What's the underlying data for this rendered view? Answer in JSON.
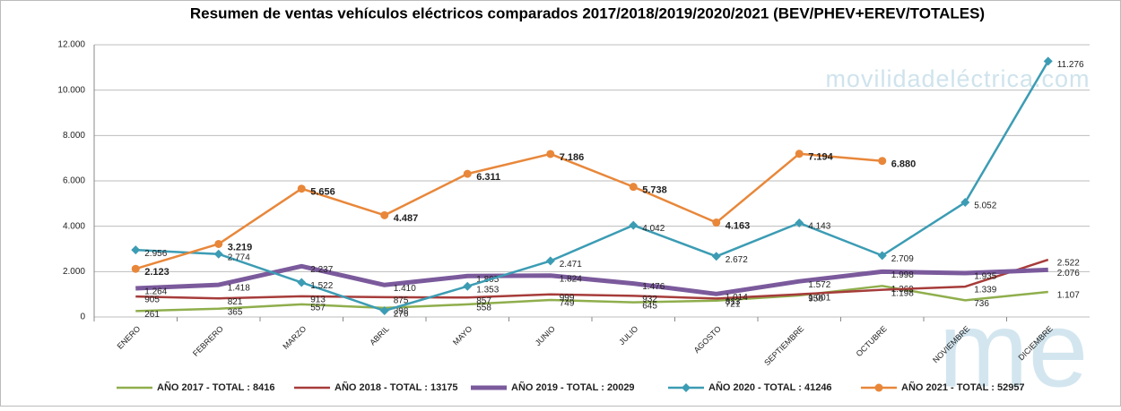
{
  "chart_data": {
    "type": "line",
    "title": "Resumen de ventas vehículos eléctricos comparados 2017/2018/2019/2020/2021  (BEV/PHEV+EREV/TOTALES)",
    "watermark": "movilidadeléctrica.com",
    "logo": "me",
    "categories": [
      "ENERO",
      "FEBRERO",
      "MARZO",
      "ABRIL",
      "MAYO",
      "JUNIO",
      "JULIO",
      "AGOSTO",
      "SEPTIEMBRE",
      "OCTUBRE",
      "NOVIEMBRE",
      "DICIEMBRE"
    ],
    "ylim": [
      0,
      12000
    ],
    "yticks": [
      0,
      {
        "value": 2000,
        "label": "2.000"
      },
      {
        "value": 4000,
        "label": "4.000"
      },
      {
        "value": 6000,
        "label": "6.000"
      },
      {
        "value": 8000,
        "label": "8.000"
      },
      {
        "value": 10000,
        "label": "10.000"
      },
      {
        "value": 12000,
        "label": "12.000"
      }
    ],
    "grid": true,
    "legend": "bottom",
    "series": [
      {
        "name": "AÑO 2017 - TOTAL : 8416",
        "color": "#8fae4c",
        "marker": "none",
        "width": 2.5,
        "values": [
          261,
          365,
          557,
          398,
          558,
          749,
          645,
          721,
          950,
          1369,
          736,
          1107
        ],
        "value_labels": [
          "261",
          "365",
          "557",
          "398",
          "558",
          "749",
          "645",
          "721",
          "950",
          "1.369",
          "736",
          "1.107"
        ]
      },
      {
        "name": "AÑO 2018 - TOTAL : 13175",
        "color": "#a63c3a",
        "marker": "none",
        "width": 2.5,
        "values": [
          905,
          821,
          913,
          875,
          857,
          999,
          932,
          813,
          1001,
          1198,
          1339,
          2522
        ],
        "value_labels": [
          "905",
          "821",
          "913",
          "875",
          "857",
          "999",
          "932",
          "813",
          "1.001",
          "1.198",
          "1.339",
          "2.522"
        ]
      },
      {
        "name": "AÑO 2019 - TOTAL : 20029",
        "color": "#7b5a9c",
        "marker": "none",
        "width": 5,
        "values": [
          1264,
          1418,
          2237,
          1410,
          1805,
          1824,
          1476,
          1014,
          1572,
          1998,
          1935,
          2076
        ],
        "value_labels": [
          "1.264",
          "1.418",
          "2.237",
          "1.410",
          "1.805",
          "1.824",
          "1.476",
          "1.014",
          "1.572",
          "1.998",
          "1.935",
          "2.076"
        ]
      },
      {
        "name": "AÑO 2020 - TOTAL : 41246",
        "color": "#3c9cb4",
        "marker": "diamond",
        "width": 2.5,
        "values": [
          2956,
          2774,
          1522,
          276,
          1353,
          2471,
          4042,
          2672,
          4143,
          2709,
          5052,
          11276
        ],
        "value_labels": [
          "2.956",
          "2.774",
          "1.522",
          "276",
          "1.353",
          "2.471",
          "4.042",
          "2.672",
          "4.143",
          "2.709",
          "5.052",
          "11.276"
        ]
      },
      {
        "name": "AÑO 2021 - TOTAL : 52957",
        "color": "#e8873a",
        "marker": "circle",
        "width": 2.5,
        "bold_labels": true,
        "values": [
          2123,
          3219,
          5656,
          4487,
          6311,
          7186,
          5738,
          4163,
          7194,
          6880,
          null,
          null
        ],
        "value_labels": [
          "2.123",
          "3.219",
          "5.656",
          "4.487",
          "6.311",
          "7.186",
          "5.738",
          "4.163",
          "7.194",
          "6.880",
          null,
          null
        ]
      }
    ]
  }
}
